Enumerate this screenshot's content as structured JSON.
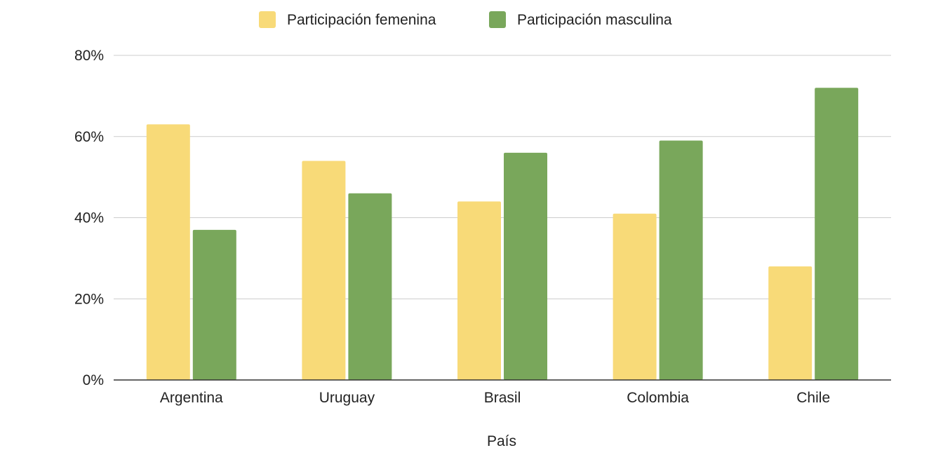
{
  "chart_data": {
    "type": "bar",
    "categories": [
      "Argentina",
      "Uruguay",
      "Brasil",
      "Colombia",
      "Chile"
    ],
    "series": [
      {
        "name": "Participación femenina",
        "color": "#f8da78",
        "values": [
          63,
          54,
          44,
          41,
          28
        ]
      },
      {
        "name": "Participación masculina",
        "color": "#79a75b",
        "values": [
          37,
          46,
          56,
          59,
          72
        ]
      }
    ],
    "xlabel": "País",
    "ylabel": "",
    "ylim": [
      0,
      80
    ],
    "yticks": [
      0,
      20,
      40,
      60,
      80
    ],
    "ytick_labels": [
      "0%",
      "20%",
      "40%",
      "60%",
      "80%"
    ],
    "grid": true,
    "legend": "top-center"
  }
}
